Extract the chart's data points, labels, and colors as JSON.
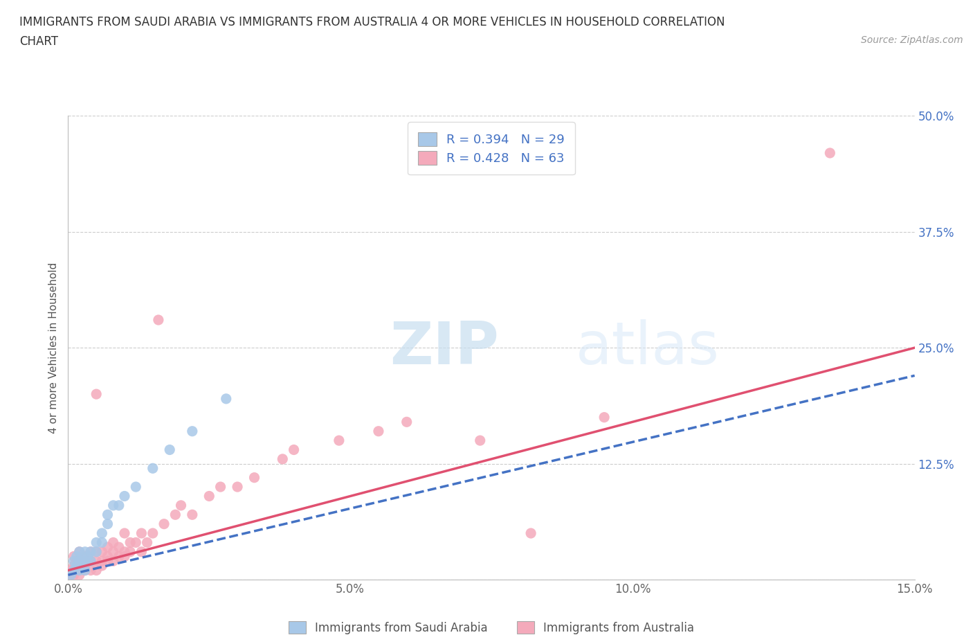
{
  "title_line1": "IMMIGRANTS FROM SAUDI ARABIA VS IMMIGRANTS FROM AUSTRALIA 4 OR MORE VEHICLES IN HOUSEHOLD CORRELATION",
  "title_line2": "CHART",
  "source": "Source: ZipAtlas.com",
  "ylabel": "4 or more Vehicles in Household",
  "legend_label1": "Immigrants from Saudi Arabia",
  "legend_label2": "Immigrants from Australia",
  "r1": 0.394,
  "n1": 29,
  "r2": 0.428,
  "n2": 63,
  "xlim": [
    0.0,
    0.15
  ],
  "ylim": [
    0.0,
    0.5
  ],
  "xticks": [
    0.0,
    0.05,
    0.1,
    0.15
  ],
  "xticklabels": [
    "0.0%",
    "5.0%",
    "10.0%",
    "15.0%"
  ],
  "yticks": [
    0.0,
    0.125,
    0.25,
    0.375,
    0.5
  ],
  "yticklabels": [
    "",
    "12.5%",
    "25.0%",
    "37.5%",
    "50.0%"
  ],
  "color1": "#a8c8e8",
  "color2": "#f4aabb",
  "line_color1": "#4472c4",
  "line_color2": "#e05070",
  "watermark_zip": "ZIP",
  "watermark_atlas": "atlas",
  "background_color": "#ffffff",
  "saudi_x": [
    0.0005,
    0.001,
    0.001,
    0.0015,
    0.0015,
    0.002,
    0.002,
    0.002,
    0.0025,
    0.003,
    0.003,
    0.003,
    0.0035,
    0.004,
    0.004,
    0.005,
    0.005,
    0.006,
    0.006,
    0.007,
    0.007,
    0.008,
    0.009,
    0.01,
    0.012,
    0.015,
    0.018,
    0.022,
    0.028
  ],
  "saudi_y": [
    0.005,
    0.01,
    0.02,
    0.015,
    0.025,
    0.01,
    0.02,
    0.03,
    0.02,
    0.01,
    0.02,
    0.03,
    0.025,
    0.02,
    0.03,
    0.03,
    0.04,
    0.04,
    0.05,
    0.06,
    0.07,
    0.08,
    0.08,
    0.09,
    0.1,
    0.12,
    0.14,
    0.16,
    0.195
  ],
  "australia_x": [
    0.0003,
    0.0005,
    0.001,
    0.001,
    0.001,
    0.0015,
    0.0015,
    0.002,
    0.002,
    0.002,
    0.002,
    0.0025,
    0.003,
    0.003,
    0.003,
    0.003,
    0.0035,
    0.004,
    0.004,
    0.004,
    0.005,
    0.005,
    0.005,
    0.005,
    0.006,
    0.006,
    0.006,
    0.007,
    0.007,
    0.007,
    0.008,
    0.008,
    0.008,
    0.009,
    0.009,
    0.01,
    0.01,
    0.01,
    0.011,
    0.011,
    0.012,
    0.013,
    0.013,
    0.014,
    0.015,
    0.016,
    0.017,
    0.019,
    0.02,
    0.022,
    0.025,
    0.027,
    0.03,
    0.033,
    0.038,
    0.04,
    0.048,
    0.055,
    0.06,
    0.073,
    0.082,
    0.095,
    0.135
  ],
  "australia_y": [
    0.005,
    0.01,
    0.005,
    0.015,
    0.025,
    0.01,
    0.02,
    0.005,
    0.015,
    0.02,
    0.03,
    0.02,
    0.01,
    0.015,
    0.02,
    0.025,
    0.025,
    0.01,
    0.02,
    0.03,
    0.01,
    0.02,
    0.03,
    0.2,
    0.015,
    0.02,
    0.03,
    0.02,
    0.025,
    0.035,
    0.02,
    0.03,
    0.04,
    0.025,
    0.035,
    0.025,
    0.03,
    0.05,
    0.03,
    0.04,
    0.04,
    0.03,
    0.05,
    0.04,
    0.05,
    0.28,
    0.06,
    0.07,
    0.08,
    0.07,
    0.09,
    0.1,
    0.1,
    0.11,
    0.13,
    0.14,
    0.15,
    0.16,
    0.17,
    0.15,
    0.05,
    0.175,
    0.46
  ]
}
